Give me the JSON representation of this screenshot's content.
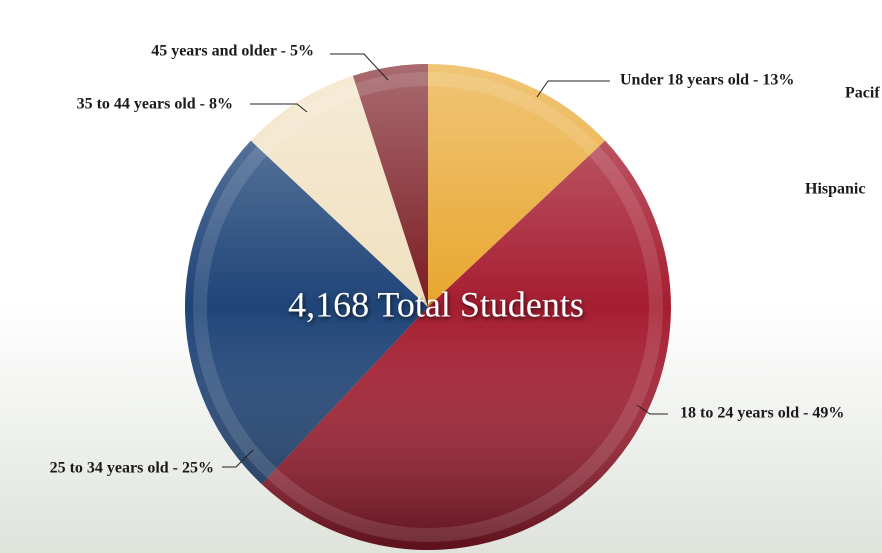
{
  "chart_data": {
    "type": "pie",
    "center_label": "4,168 Total Students",
    "values": [
      13,
      49,
      25,
      8,
      5
    ],
    "value_labels": [
      "Under 18 years old - 13%",
      "18 to 24 years old - 49%",
      "25 to 34 years old - 25%",
      "35 to 44 years old - 8%",
      "45 years and older - 5%"
    ],
    "colors": [
      "#e8a62e",
      "#a51d30",
      "#1f4478",
      "#f0e0c0",
      "#7a1c22"
    ],
    "annotations": [
      "Pacif",
      "Hispanic"
    ]
  }
}
